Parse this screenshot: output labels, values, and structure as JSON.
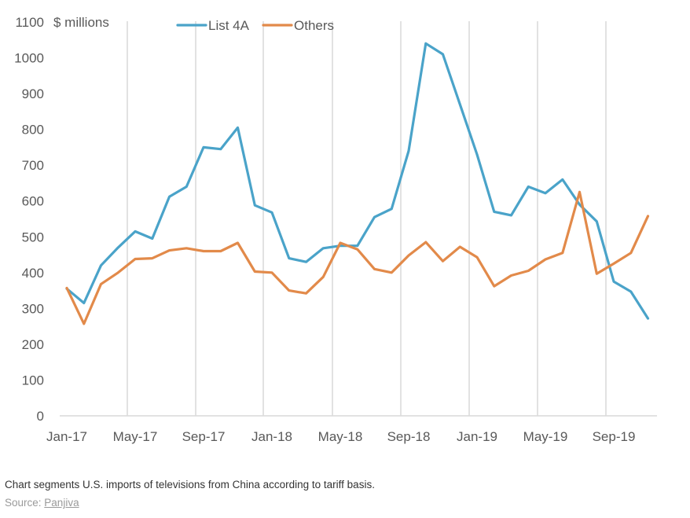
{
  "chart_data": {
    "type": "line",
    "title": "",
    "ylabel": "$ millions",
    "xlabel": "",
    "ylim": [
      0,
      1100
    ],
    "yticks": [
      0,
      100,
      200,
      300,
      400,
      500,
      600,
      700,
      800,
      900,
      1000,
      1100
    ],
    "xtick_labels": [
      "Jan-17",
      "May-17",
      "Sep-17",
      "Jan-18",
      "May-18",
      "Sep-18",
      "Jan-19",
      "May-19",
      "Sep-19"
    ],
    "x": [
      "Jan-17",
      "Feb-17",
      "Mar-17",
      "Apr-17",
      "May-17",
      "Jun-17",
      "Jul-17",
      "Aug-17",
      "Sep-17",
      "Oct-17",
      "Nov-17",
      "Dec-17",
      "Jan-18",
      "Feb-18",
      "Mar-18",
      "Apr-18",
      "May-18",
      "Jun-18",
      "Jul-18",
      "Aug-18",
      "Sep-18",
      "Oct-18",
      "Nov-18",
      "Dec-18",
      "Jan-19",
      "Feb-19",
      "Mar-19",
      "Apr-19",
      "May-19",
      "Jun-19",
      "Jul-19",
      "Aug-19",
      "Sep-19",
      "Oct-19",
      "Nov-19"
    ],
    "grid": "vertical",
    "legend": "top",
    "series": [
      {
        "name": "List 4A",
        "color": "#4aa3c9",
        "values": [
          355,
          315,
          420,
          470,
          515,
          495,
          612,
          640,
          750,
          745,
          805,
          588,
          568,
          440,
          430,
          468,
          475,
          475,
          555,
          578,
          740,
          1040,
          1010,
          870,
          730,
          570,
          560,
          640,
          622,
          660,
          590,
          543,
          375,
          347,
          272
        ]
      },
      {
        "name": "Others",
        "color": "#e28a4a",
        "values": [
          357,
          257,
          368,
          400,
          438,
          440,
          462,
          468,
          460,
          460,
          483,
          403,
          400,
          350,
          342,
          388,
          483,
          465,
          410,
          400,
          448,
          485,
          432,
          472,
          443,
          362,
          392,
          405,
          437,
          455,
          625,
          397,
          425,
          455,
          558
        ]
      }
    ]
  },
  "caption": "Chart segments U.S. imports of televisions from China according to tariff basis.",
  "source_label": "Source:",
  "source_name": "Panjiva"
}
